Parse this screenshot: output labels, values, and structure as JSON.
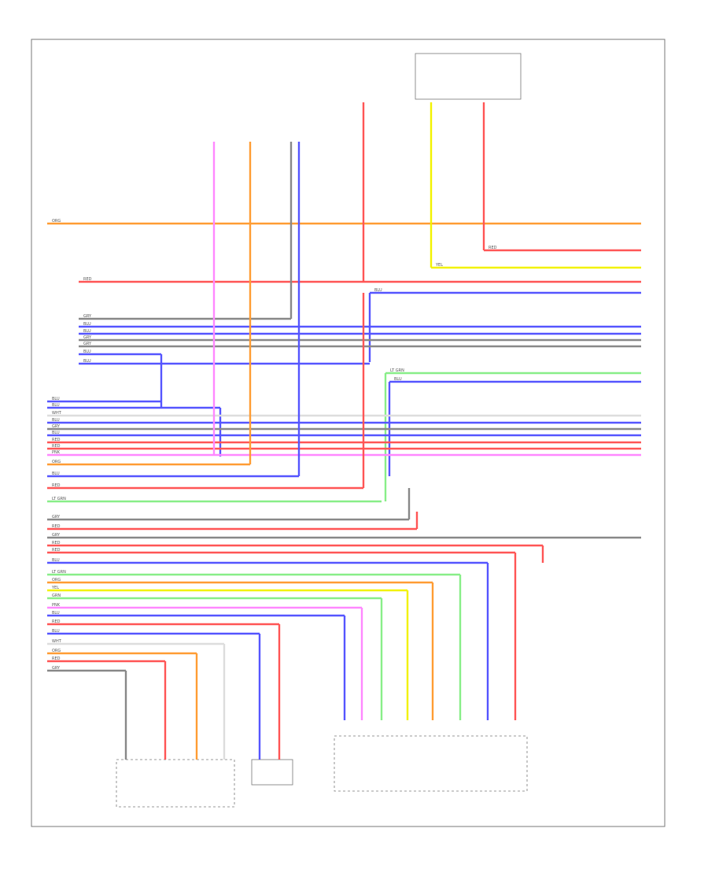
{
  "wires": [
    {
      "label": "ORG",
      "color": "#ff9c33"
    },
    {
      "label": "RED",
      "color": "#ff5555"
    },
    {
      "label": "YEL",
      "color": "#f2f200"
    },
    {
      "label": "RED",
      "color": "#ff5555"
    },
    {
      "label": "BLU",
      "color": "#5555ff"
    },
    {
      "label": "GRY",
      "color": "#888888"
    },
    {
      "label": "BLU",
      "color": "#5555ff"
    },
    {
      "label": "BLU",
      "color": "#5555ff"
    },
    {
      "label": "GRY",
      "color": "#888888"
    },
    {
      "label": "GRY",
      "color": "#888888"
    },
    {
      "label": "BLU",
      "color": "#5555ff"
    },
    {
      "label": "BLU",
      "color": "#5555ff"
    },
    {
      "label": "LT GRN",
      "color": "#88ee88"
    },
    {
      "label": "BLU",
      "color": "#5555ff"
    },
    {
      "label": "BLU",
      "color": "#5555ff"
    },
    {
      "label": "BLU",
      "color": "#5555ff"
    },
    {
      "label": "WHT",
      "color": "#dddddd"
    },
    {
      "label": "BLU",
      "color": "#5555ff"
    },
    {
      "label": "GRY",
      "color": "#888888"
    },
    {
      "label": "BLU",
      "color": "#5555ff"
    },
    {
      "label": "RED",
      "color": "#ff5555"
    },
    {
      "label": "RED",
      "color": "#ff5555"
    },
    {
      "label": "PNK",
      "color": "#ff88ff"
    },
    {
      "label": "ORG",
      "color": "#ff9c33"
    },
    {
      "label": "BLU",
      "color": "#5555ff"
    },
    {
      "label": "RED",
      "color": "#ff5555"
    },
    {
      "label": "LT GRN",
      "color": "#88ee88"
    },
    {
      "label": "GRY",
      "color": "#888888"
    },
    {
      "label": "RED",
      "color": "#ff5555"
    },
    {
      "label": "GRY",
      "color": "#888888"
    },
    {
      "label": "RED",
      "color": "#ff5555"
    },
    {
      "label": "RED",
      "color": "#ff5555"
    },
    {
      "label": "BLU",
      "color": "#5555ff"
    },
    {
      "label": "LT GRN",
      "color": "#88ee88"
    },
    {
      "label": "ORG",
      "color": "#ff9c33"
    },
    {
      "label": "YEL",
      "color": "#f2f200"
    },
    {
      "label": "GRN",
      "color": "#88ee88"
    },
    {
      "label": "PNK",
      "color": "#ff88ff"
    },
    {
      "label": "BLU",
      "color": "#5555ff"
    },
    {
      "label": "RED",
      "color": "#ff5555"
    },
    {
      "label": "BLU",
      "color": "#5555ff"
    },
    {
      "label": "WHT",
      "color": "#dddddd"
    },
    {
      "label": "ORG",
      "color": "#ff9c33"
    },
    {
      "label": "RED",
      "color": "#ff5555"
    },
    {
      "label": "GRY",
      "color": "#888888"
    }
  ]
}
